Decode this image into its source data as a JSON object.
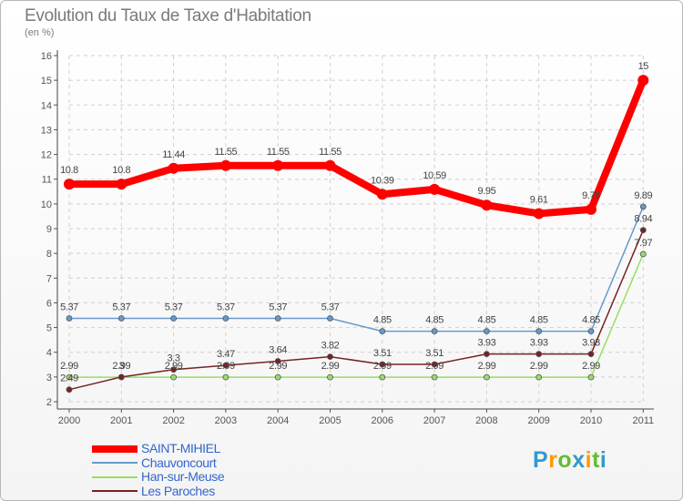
{
  "chart_data": {
    "type": "line",
    "title": "Evolution du Taux de Taxe d'Habitation",
    "subtitle": "(en %)",
    "x": [
      "2000",
      "2001",
      "2002",
      "2003",
      "2004",
      "2005",
      "2006",
      "2007",
      "2008",
      "2009",
      "2010",
      "2011"
    ],
    "ylim": [
      2,
      16
    ],
    "yticks": [
      2,
      3,
      4,
      5,
      6,
      7,
      8,
      9,
      10,
      11,
      12,
      13,
      14,
      15,
      16
    ],
    "grid": true,
    "legend_position": "bottom-left",
    "series": [
      {
        "name": "SAINT-MIHIEL",
        "color": "#ff0000",
        "values": [
          10.8,
          10.8,
          11.44,
          11.55,
          11.55,
          11.55,
          10.39,
          10.59,
          9.95,
          9.61,
          9.78,
          15
        ],
        "labels": [
          "10.8",
          "10.8",
          "11.44",
          "11.55",
          "11.55",
          "11.55",
          "10.39",
          "10.59",
          "9.95",
          "9.61",
          "9.78",
          "15"
        ]
      },
      {
        "name": "Chauvoncourt",
        "color": "#6699cc",
        "values": [
          5.37,
          5.37,
          5.37,
          5.37,
          5.37,
          5.37,
          4.85,
          4.85,
          4.85,
          4.85,
          4.85,
          9.89
        ],
        "labels": [
          "5.37",
          "5.37",
          "5.37",
          "5.37",
          "5.37",
          "5.37",
          "4.85",
          "4.85",
          "4.85",
          "4.85",
          "4.85",
          "9.89"
        ]
      },
      {
        "name": "Han-sur-Meuse",
        "color": "#99dd66",
        "values": [
          2.99,
          2.99,
          2.99,
          2.99,
          2.99,
          2.99,
          2.99,
          2.99,
          2.99,
          2.99,
          2.99,
          7.97
        ],
        "labels": [
          "2.99",
          "2.99",
          "2.99",
          "2.99",
          "2.99",
          "2.99",
          "2.99",
          "2.99",
          "2.99",
          "2.99",
          "2.99",
          "7.97"
        ]
      },
      {
        "name": "Les Paroches",
        "color": "#772222",
        "values": [
          2.49,
          3,
          3.3,
          3.47,
          3.64,
          3.82,
          3.51,
          3.51,
          3.93,
          3.93,
          3.93,
          8.94
        ],
        "labels": [
          "2.49",
          "3",
          "3.3",
          "3.47",
          "3.64",
          "3.82",
          "3.51",
          "3.51",
          "3.93",
          "3.93",
          "3.93",
          "8.94"
        ]
      }
    ]
  },
  "legend": {
    "label_color": "#3366cc",
    "items": [
      "SAINT-MIHIEL",
      "Chauvoncourt",
      "Han-sur-Meuse",
      "Les Paroches"
    ]
  },
  "brand": {
    "text": "Proxiti",
    "letter_colors": [
      "#3399cc",
      "#ff9900",
      "#66bb33",
      "#3399cc",
      "#ff9900",
      "#66bb33",
      "#3399cc"
    ]
  }
}
